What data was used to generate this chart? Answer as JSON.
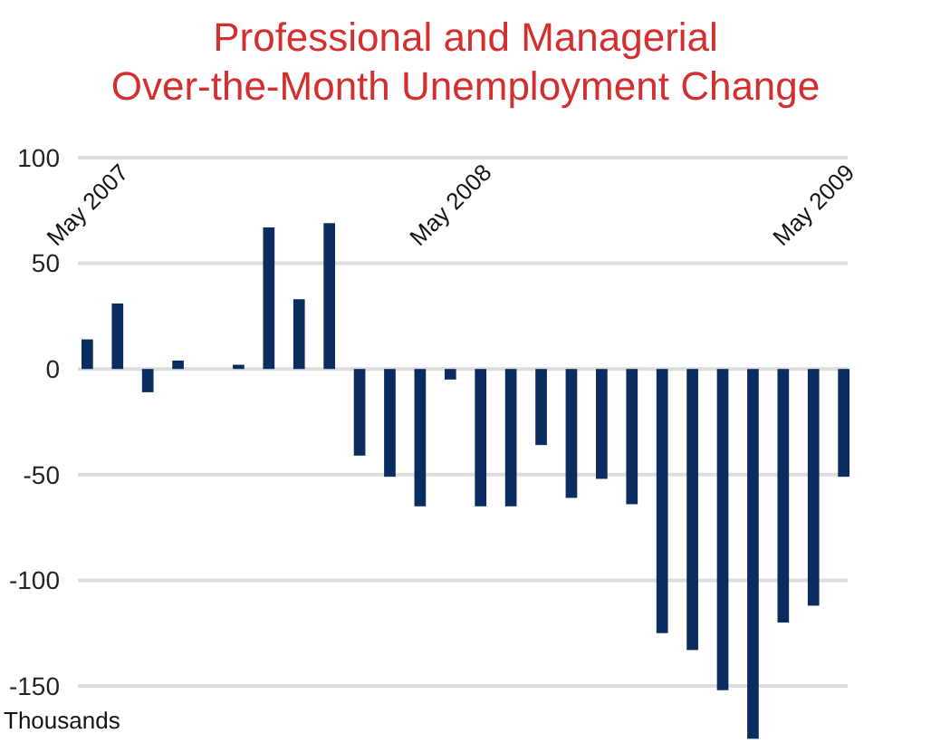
{
  "chart_data": {
    "type": "bar",
    "title": "Professional and Managerial\nOver-the-Month Unemployment Change",
    "ylabel": "Thousands",
    "categories": [
      "May 2007",
      null,
      null,
      null,
      null,
      null,
      null,
      null,
      null,
      null,
      null,
      null,
      "May 2008",
      null,
      null,
      null,
      null,
      null,
      null,
      null,
      null,
      null,
      null,
      null,
      "May 2009",
      null
    ],
    "values": [
      14,
      31,
      -11,
      4,
      null,
      2,
      67,
      33,
      69,
      -41,
      -51,
      -65,
      -5,
      -65,
      -65,
      -36,
      -61,
      -52,
      -64,
      -125,
      -133,
      -152,
      -175,
      -120,
      -112,
      -51
    ],
    "color": "#0b2c5e",
    "ylim": [
      -177,
      100
    ],
    "yticks": [
      -150,
      -100,
      -50,
      0,
      50,
      100
    ],
    "grid": "y"
  }
}
